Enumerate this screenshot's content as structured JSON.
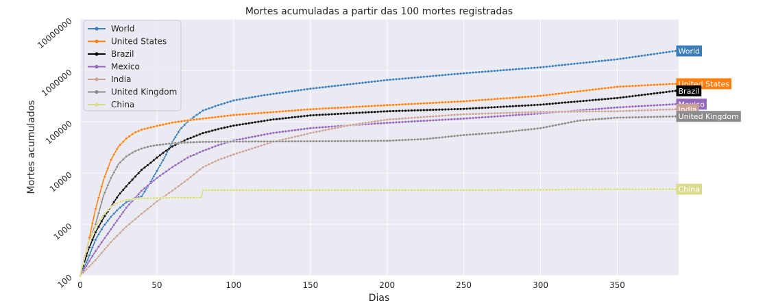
{
  "chart_data": {
    "type": "line",
    "title": "Mortes acumuladas a partir das 100 mortes registradas",
    "xlabel": "Dias",
    "ylabel": "Mortes acumulados",
    "xlim": [
      0,
      390
    ],
    "ylim": [
      100,
      10000000
    ],
    "y_scale": "log",
    "x_ticks": [
      0,
      50,
      100,
      150,
      200,
      250,
      300,
      350
    ],
    "x_tick_labels": [
      "0",
      "50",
      "100",
      "150",
      "200",
      "250",
      "300",
      "350"
    ],
    "y_ticks": [
      100,
      1000,
      10000,
      100000,
      1000000,
      10000000
    ],
    "y_tick_labels": [
      "100",
      "1000",
      "10000",
      "100000",
      "1000000",
      "10000000"
    ],
    "grid": true,
    "background": "#eaeaf2",
    "legend_placement": "top-left",
    "series": [
      {
        "name": "World",
        "color": "#3b7dba",
        "end_label": "World",
        "points": [
          [
            0,
            100
          ],
          [
            5,
            210
          ],
          [
            10,
            500
          ],
          [
            15,
            900
          ],
          [
            20,
            1400
          ],
          [
            25,
            2000
          ],
          [
            30,
            2700
          ],
          [
            35,
            3200
          ],
          [
            40,
            3500
          ],
          [
            45,
            6000
          ],
          [
            50,
            11000
          ],
          [
            55,
            20000
          ],
          [
            60,
            40000
          ],
          [
            65,
            70000
          ],
          [
            70,
            100000
          ],
          [
            75,
            130000
          ],
          [
            80,
            165000
          ],
          [
            90,
            210000
          ],
          [
            100,
            260000
          ],
          [
            120,
            330000
          ],
          [
            150,
            440000
          ],
          [
            200,
            650000
          ],
          [
            250,
            880000
          ],
          [
            300,
            1150000
          ],
          [
            350,
            1650000
          ],
          [
            388,
            2400000
          ]
        ]
      },
      {
        "name": "United States",
        "color": "#ff7f0e",
        "end_label": "United States",
        "points": [
          [
            0,
            100
          ],
          [
            5,
            400
          ],
          [
            10,
            2000
          ],
          [
            15,
            7000
          ],
          [
            20,
            18000
          ],
          [
            25,
            33000
          ],
          [
            30,
            47000
          ],
          [
            35,
            60000
          ],
          [
            40,
            70000
          ],
          [
            50,
            83000
          ],
          [
            60,
            96000
          ],
          [
            70,
            106000
          ],
          [
            80,
            115000
          ],
          [
            100,
            135000
          ],
          [
            150,
            175000
          ],
          [
            200,
            210000
          ],
          [
            250,
            250000
          ],
          [
            300,
            320000
          ],
          [
            350,
            480000
          ],
          [
            388,
            550000
          ]
        ]
      },
      {
        "name": "Brazil",
        "color": "#000000",
        "end_label": "Brazil",
        "points": [
          [
            0,
            100
          ],
          [
            5,
            300
          ],
          [
            10,
            700
          ],
          [
            15,
            1300
          ],
          [
            20,
            2200
          ],
          [
            25,
            3700
          ],
          [
            30,
            5500
          ],
          [
            35,
            8000
          ],
          [
            40,
            11500
          ],
          [
            45,
            15000
          ],
          [
            50,
            20000
          ],
          [
            55,
            26000
          ],
          [
            60,
            33000
          ],
          [
            70,
            46000
          ],
          [
            80,
            60000
          ],
          [
            90,
            72000
          ],
          [
            100,
            84000
          ],
          [
            125,
            110000
          ],
          [
            150,
            133000
          ],
          [
            200,
            160000
          ],
          [
            250,
            178000
          ],
          [
            300,
            215000
          ],
          [
            350,
            290000
          ],
          [
            388,
            400000
          ]
        ]
      },
      {
        "name": "Mexico",
        "color": "#9467bd",
        "end_label": "Mexico",
        "points": [
          [
            0,
            100
          ],
          [
            10,
            300
          ],
          [
            20,
            800
          ],
          [
            30,
            2100
          ],
          [
            40,
            4500
          ],
          [
            50,
            8000
          ],
          [
            60,
            13000
          ],
          [
            70,
            20000
          ],
          [
            80,
            27000
          ],
          [
            90,
            35000
          ],
          [
            100,
            43000
          ],
          [
            125,
            60000
          ],
          [
            150,
            75000
          ],
          [
            175,
            85000
          ],
          [
            200,
            95000
          ],
          [
            250,
            115000
          ],
          [
            300,
            145000
          ],
          [
            350,
            190000
          ],
          [
            388,
            220000
          ]
        ]
      },
      {
        "name": "India",
        "color": "#c9a397",
        "end_label": "India",
        "points": [
          [
            0,
            100
          ],
          [
            10,
            200
          ],
          [
            20,
            450
          ],
          [
            30,
            900
          ],
          [
            40,
            1600
          ],
          [
            50,
            2800
          ],
          [
            60,
            4500
          ],
          [
            70,
            7500
          ],
          [
            80,
            13000
          ],
          [
            90,
            18000
          ],
          [
            100,
            23000
          ],
          [
            125,
            40000
          ],
          [
            150,
            60000
          ],
          [
            175,
            85000
          ],
          [
            200,
            110000
          ],
          [
            250,
            140000
          ],
          [
            300,
            155000
          ],
          [
            350,
            160000
          ],
          [
            388,
            175000
          ]
        ]
      },
      {
        "name": "United Kingdom",
        "color": "#8c8c8c",
        "end_label": "United Kingdom",
        "points": [
          [
            0,
            100
          ],
          [
            5,
            400
          ],
          [
            10,
            1000
          ],
          [
            15,
            3500
          ],
          [
            20,
            8000
          ],
          [
            25,
            15000
          ],
          [
            30,
            21000
          ],
          [
            35,
            26000
          ],
          [
            40,
            30000
          ],
          [
            45,
            33000
          ],
          [
            50,
            35000
          ],
          [
            60,
            38000
          ],
          [
            70,
            39500
          ],
          [
            80,
            40500
          ],
          [
            100,
            41000
          ],
          [
            150,
            41500
          ],
          [
            200,
            42500
          ],
          [
            225,
            46000
          ],
          [
            250,
            55000
          ],
          [
            275,
            62000
          ],
          [
            300,
            75000
          ],
          [
            325,
            105000
          ],
          [
            350,
            120000
          ],
          [
            388,
            127000
          ]
        ]
      },
      {
        "name": "China",
        "color": "#dbdb8d",
        "end_label": "China",
        "points": [
          [
            0,
            100
          ],
          [
            5,
            400
          ],
          [
            10,
            900
          ],
          [
            15,
            1500
          ],
          [
            20,
            2200
          ],
          [
            25,
            2700
          ],
          [
            30,
            3000
          ],
          [
            35,
            3100
          ],
          [
            40,
            3200
          ],
          [
            50,
            3250
          ],
          [
            60,
            3300
          ],
          [
            79,
            3330
          ],
          [
            80,
            4630
          ],
          [
            150,
            4634
          ],
          [
            250,
            4640
          ],
          [
            310,
            4700
          ],
          [
            320,
            4800
          ],
          [
            388,
            4830
          ]
        ]
      }
    ]
  }
}
